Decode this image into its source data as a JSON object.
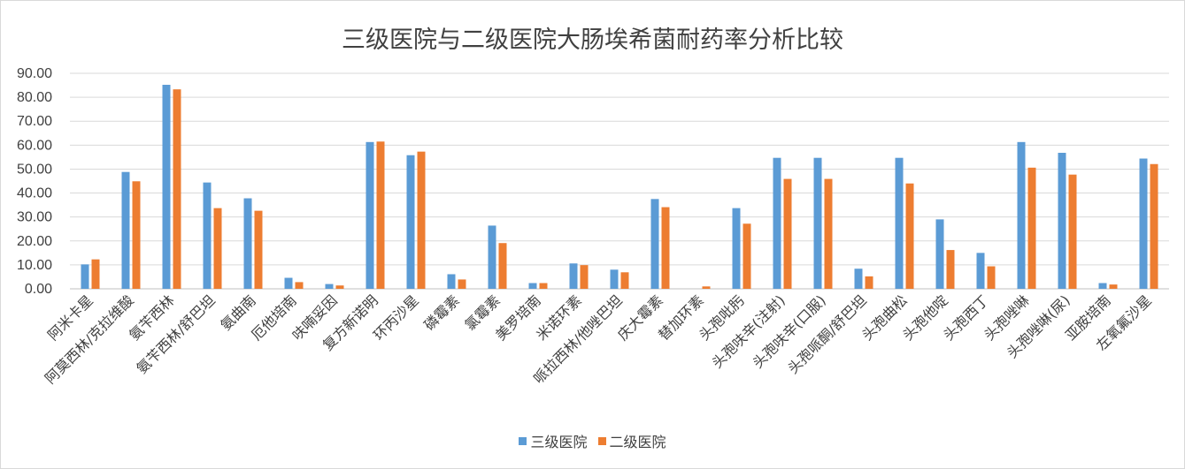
{
  "chart_data": {
    "type": "bar",
    "title": "三级医院与二级医院大肠埃希菌耐药率分析比较",
    "xlabel": "",
    "ylabel": "",
    "ylim": [
      0,
      90
    ],
    "yticks": [
      "0.00",
      "10.00",
      "20.00",
      "30.00",
      "40.00",
      "50.00",
      "60.00",
      "70.00",
      "80.00",
      "90.00"
    ],
    "grid": true,
    "legend_position": "bottom",
    "categories": [
      "阿米卡星",
      "阿莫西林/克拉维酸",
      "氨苄西林",
      "氨苄西林/舒巴坦",
      "氨曲南",
      "厄他培南",
      "呋喃妥因",
      "复方新诺明",
      "环丙沙星",
      "磷霉素",
      "氯霉素",
      "美罗培南",
      "米诺环素",
      "哌拉西林/他唑巴坦",
      "庆大霉素",
      "替加环素",
      "头孢吡肟",
      "头孢呋辛(注射)",
      "头孢呋辛(口服)",
      "头孢哌酮/舒巴坦",
      "头孢曲松",
      "头孢他啶",
      "头孢西丁",
      "头孢唑啉",
      "头孢唑啉(尿)",
      "亚胺培南",
      "左氧氟沙星"
    ],
    "series": [
      {
        "name": "三级医院",
        "color": "#5b9bd5",
        "values": [
          10.2,
          48.8,
          85.2,
          44.4,
          37.8,
          4.6,
          2.0,
          61.3,
          55.8,
          6.1,
          26.4,
          2.4,
          10.6,
          8.0,
          37.5,
          0.0,
          33.7,
          54.7,
          54.7,
          8.4,
          54.7,
          29.0,
          15.0,
          61.3,
          56.8,
          2.4,
          54.4
        ]
      },
      {
        "name": "二级医院",
        "color": "#ed7d31",
        "values": [
          12.3,
          44.9,
          83.3,
          33.7,
          32.6,
          2.8,
          1.4,
          61.5,
          57.3,
          3.9,
          19.1,
          2.4,
          9.9,
          6.9,
          34.1,
          1.0,
          27.2,
          45.9,
          45.9,
          5.2,
          44.0,
          16.2,
          9.4,
          50.6,
          47.7,
          1.8,
          52.1
        ]
      }
    ]
  }
}
